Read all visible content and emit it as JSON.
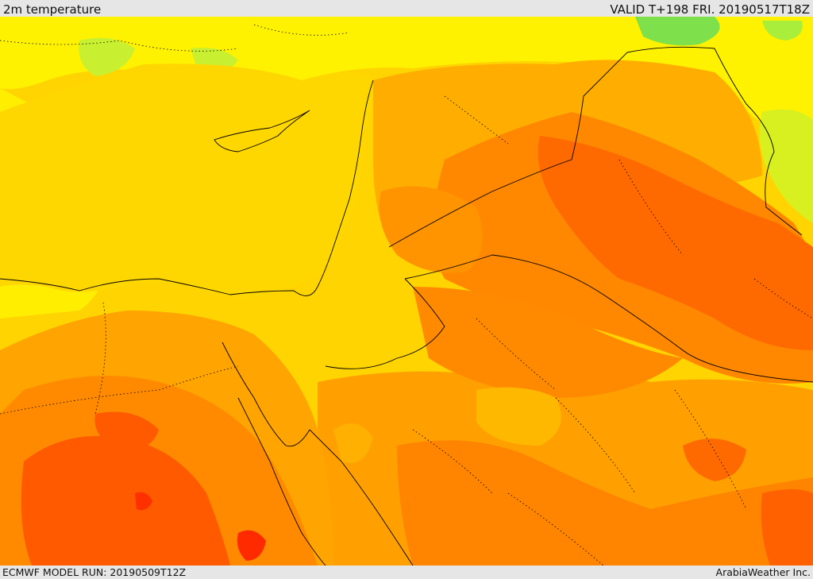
{
  "header": {
    "title": "2m temperature",
    "valid": "VALID T+198 FRI. 20190517T18Z"
  },
  "footer": {
    "model_run": "ECMWF MODEL RUN: 20190509T12Z",
    "credit": "ArabiaWeather Inc."
  },
  "colors": {
    "cool_green": "#7ee04a",
    "light_yellow": "#ffff00",
    "yellow": "#ffe000",
    "gold": "#ffd000",
    "amber": "#ffaa00",
    "orange": "#ff8c00",
    "dark_orange": "#ff5a00",
    "red": "#ff2a00"
  }
}
